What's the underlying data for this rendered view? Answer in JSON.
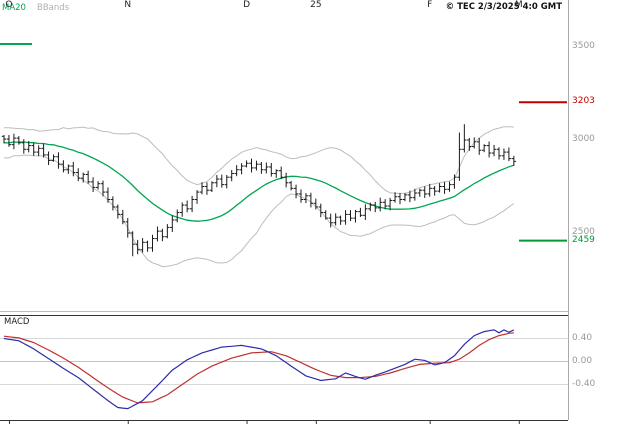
{
  "legend": {
    "ma20": "MA20",
    "bbands": "BBands"
  },
  "copyright": "© TEC 2/3/2025 4:0 GMT",
  "macd_panel": {
    "label": "MACD"
  },
  "colors": {
    "ma20": "#00a651",
    "bbands": "#bdbdbd",
    "bars": "#1a1a1a",
    "resistance": "#c00000",
    "support": "#009933",
    "macd_line": "#2c2cab",
    "signal_line": "#c03030",
    "grid": "#d8d8d8",
    "grid_zero": "#c4c4c4",
    "frame": "#333333",
    "separator": "#bbbbbb",
    "axis_line": "#aaaaaa",
    "tick_text": "#999999",
    "month_text": "#222222"
  },
  "price_axis": {
    "ticks": [
      {
        "text": "3500",
        "price": 3500
      },
      {
        "text": "3000",
        "price": 3000
      },
      {
        "text": "2500",
        "price": 2500
      }
    ],
    "levels": [
      {
        "text": "3203",
        "price": 3203,
        "type": "resistance"
      },
      {
        "text": "2459",
        "price": 2459,
        "type": "support"
      }
    ]
  },
  "macd_axis": {
    "ticks": [
      {
        "text": "0.40",
        "value": 0.4
      },
      {
        "text": "0.00",
        "value": 0.0
      },
      {
        "text": "-0.40",
        "value": -0.4
      }
    ]
  },
  "x_axis": {
    "labels": [
      {
        "text": "O",
        "bar": 1
      },
      {
        "text": "N",
        "bar": 25
      },
      {
        "text": "D",
        "bar": 49
      },
      {
        "text": "25",
        "bar": 63
      },
      {
        "text": "F",
        "bar": 86
      },
      {
        "text": "M",
        "bar": 104
      }
    ]
  },
  "chart_data": [
    {
      "type": "candlestick",
      "description": "Daily price bars with MA20 and Bollinger Bands; horizontal resistance level 3203 (red) and support level 2459 (green)",
      "ylim": [
        2085,
        3710
      ],
      "ma_window": 20,
      "band_stdev_mult": 2,
      "closes": [
        3005,
        2975,
        3010,
        2985,
        2950,
        2970,
        2935,
        2955,
        2920,
        2890,
        2910,
        2870,
        2840,
        2860,
        2825,
        2795,
        2815,
        2775,
        2745,
        2765,
        2720,
        2680,
        2640,
        2600,
        2560,
        2500,
        2440,
        2410,
        2450,
        2420,
        2470,
        2510,
        2480,
        2530,
        2570,
        2610,
        2650,
        2630,
        2680,
        2720,
        2750,
        2730,
        2770,
        2790,
        2760,
        2800,
        2820,
        2840,
        2860,
        2875,
        2850,
        2870,
        2840,
        2855,
        2820,
        2835,
        2800,
        2770,
        2740,
        2710,
        2680,
        2700,
        2660,
        2640,
        2610,
        2580,
        2555,
        2585,
        2565,
        2600,
        2580,
        2615,
        2595,
        2630,
        2650,
        2635,
        2665,
        2645,
        2675,
        2695,
        2680,
        2705,
        2690,
        2715,
        2730,
        2710,
        2740,
        2725,
        2750,
        2735,
        2760,
        2800,
        2950,
        3000,
        2965,
        2990,
        2945,
        2970,
        2930,
        2950,
        2915,
        2935,
        2900,
        2885
      ],
      "pre_window_closes": [
        2880,
        2980,
        2910,
        3010,
        2930,
        3030,
        2950,
        3040,
        2920,
        3000,
        2940,
        3020,
        2960,
        3040,
        2970,
        3010,
        2950,
        3030,
        2980,
        3020
      ],
      "bar_overrides": {
        "26": {
          "low": 2375
        },
        "92": {
          "high": 3040
        },
        "93": {
          "high": 3085
        }
      }
    },
    {
      "type": "line",
      "description": "MACD indicator with signal line",
      "ylim": [
        -0.95,
        0.8
      ],
      "series": [
        {
          "name": "MACD",
          "points": [
            [
              0,
              0.4
            ],
            [
              3,
              0.36
            ],
            [
              6,
              0.22
            ],
            [
              9,
              0.05
            ],
            [
              12,
              -0.12
            ],
            [
              15,
              -0.28
            ],
            [
              18,
              -0.48
            ],
            [
              21,
              -0.68
            ],
            [
              23,
              -0.8
            ],
            [
              25,
              -0.82
            ],
            [
              28,
              -0.68
            ],
            [
              31,
              -0.42
            ],
            [
              34,
              -0.15
            ],
            [
              37,
              0.03
            ],
            [
              40,
              0.15
            ],
            [
              44,
              0.25
            ],
            [
              48,
              0.28
            ],
            [
              52,
              0.22
            ],
            [
              55,
              0.1
            ],
            [
              58,
              -0.08
            ],
            [
              61,
              -0.25
            ],
            [
              64,
              -0.33
            ],
            [
              67,
              -0.3
            ],
            [
              69,
              -0.2
            ],
            [
              71,
              -0.26
            ],
            [
              73,
              -0.31
            ],
            [
              75,
              -0.24
            ],
            [
              78,
              -0.15
            ],
            [
              81,
              -0.05
            ],
            [
              83,
              0.04
            ],
            [
              85,
              0.02
            ],
            [
              87,
              -0.06
            ],
            [
              89,
              -0.02
            ],
            [
              91,
              0.1
            ],
            [
              93,
              0.3
            ],
            [
              95,
              0.45
            ],
            [
              97,
              0.52
            ],
            [
              99,
              0.55
            ],
            [
              100,
              0.5
            ],
            [
              101,
              0.55
            ],
            [
              102,
              0.51
            ],
            [
              103,
              0.55
            ]
          ]
        },
        {
          "name": "Signal",
          "points": [
            [
              0,
              0.44
            ],
            [
              3,
              0.41
            ],
            [
              6,
              0.33
            ],
            [
              9,
              0.2
            ],
            [
              12,
              0.06
            ],
            [
              15,
              -0.1
            ],
            [
              18,
              -0.28
            ],
            [
              21,
              -0.46
            ],
            [
              24,
              -0.62
            ],
            [
              27,
              -0.72
            ],
            [
              30,
              -0.7
            ],
            [
              33,
              -0.58
            ],
            [
              36,
              -0.4
            ],
            [
              39,
              -0.22
            ],
            [
              42,
              -0.08
            ],
            [
              46,
              0.06
            ],
            [
              50,
              0.15
            ],
            [
              54,
              0.17
            ],
            [
              57,
              0.1
            ],
            [
              60,
              -0.02
            ],
            [
              63,
              -0.14
            ],
            [
              66,
              -0.24
            ],
            [
              69,
              -0.28
            ],
            [
              72,
              -0.28
            ],
            [
              75,
              -0.26
            ],
            [
              78,
              -0.2
            ],
            [
              81,
              -0.12
            ],
            [
              84,
              -0.05
            ],
            [
              87,
              -0.03
            ],
            [
              90,
              -0.02
            ],
            [
              92,
              0.04
            ],
            [
              94,
              0.15
            ],
            [
              96,
              0.28
            ],
            [
              98,
              0.38
            ],
            [
              100,
              0.45
            ],
            [
              102,
              0.49
            ],
            [
              103,
              0.5
            ]
          ]
        }
      ]
    }
  ]
}
